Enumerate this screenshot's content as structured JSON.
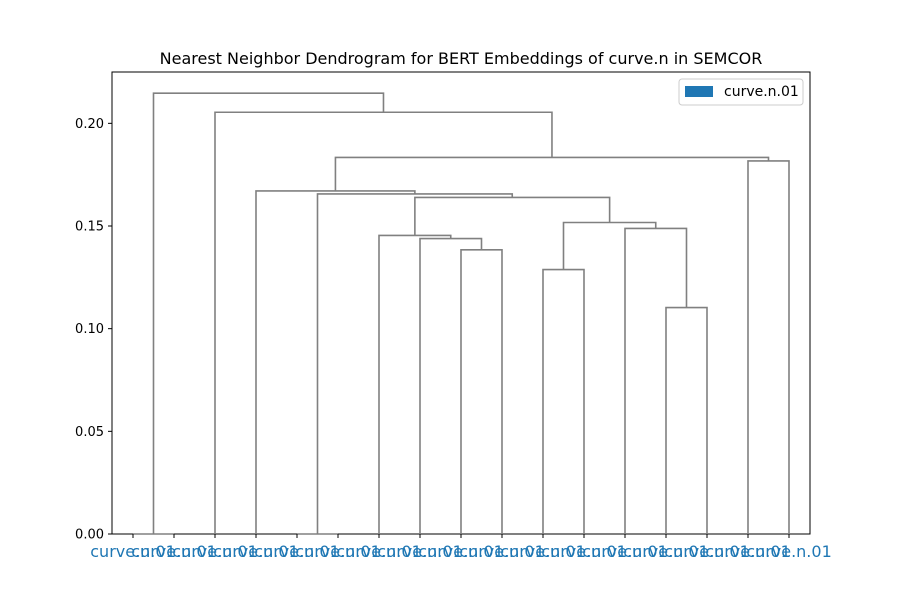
{
  "chart_data": {
    "type": "dendrogram",
    "title": "Nearest Neighbor Dendrogram for BERT Embeddings of curve.n in SEMCOR",
    "xlabel": "",
    "ylabel": "",
    "ylim": [
      0,
      0.225
    ],
    "y_ticks": [
      0.0,
      0.05,
      0.1,
      0.15,
      0.2
    ],
    "y_tick_labels": [
      "0.00",
      "0.05",
      "0.10",
      "0.15",
      "0.20"
    ],
    "leaf_count": 17,
    "leaf_labels": [
      "curve.n.01",
      "curve.n.01",
      "curve.n.01",
      "curve.n.01",
      "curve.n.01",
      "curve.n.01",
      "curve.n.01",
      "curve.n.01",
      "curve.n.01",
      "curve.n.01",
      "curve.n.01",
      "curve.n.01",
      "curve.n.01",
      "curve.n.01",
      "curve.n.01",
      "curve.n.01",
      "curve.n.01"
    ],
    "leaf_label_color": "#1f77b4",
    "link_color": "#808080",
    "links": [
      {
        "x": [
          0,
          0,
          1,
          1
        ],
        "y": [
          0,
          0,
          0,
          0
        ]
      },
      {
        "x": [
          4,
          4,
          5,
          5
        ],
        "y": [
          0,
          0,
          0,
          0
        ]
      },
      {
        "x": [
          8,
          8,
          9,
          9
        ],
        "y": [
          0,
          0.1384,
          0.1384,
          0
        ]
      },
      {
        "x": [
          7,
          7,
          8.5,
          8.5
        ],
        "y": [
          0,
          0.1439,
          0.1439,
          0.1384
        ]
      },
      {
        "x": [
          6,
          6,
          7.75,
          7.75
        ],
        "y": [
          0,
          0.1454,
          0.1454,
          0.1439
        ]
      },
      {
        "x": [
          10,
          10,
          11,
          11
        ],
        "y": [
          0,
          0.1288,
          0.1288,
          0
        ]
      },
      {
        "x": [
          13,
          13,
          14,
          14
        ],
        "y": [
          0,
          0.1103,
          0.1103,
          0
        ]
      },
      {
        "x": [
          12,
          12,
          13.5,
          13.5
        ],
        "y": [
          0,
          0.1488,
          0.1488,
          0.1103
        ]
      },
      {
        "x": [
          10.5,
          10.5,
          12.75,
          12.75
        ],
        "y": [
          0.1288,
          0.1517,
          0.1517,
          0.1488
        ]
      },
      {
        "x": [
          6.875,
          6.875,
          11.625,
          11.625
        ],
        "y": [
          0.1454,
          0.1639,
          0.1639,
          0.1517
        ]
      },
      {
        "x": [
          4.5,
          4.5,
          9.25,
          9.25
        ],
        "y": [
          0,
          0.1656,
          0.1656,
          0.1639
        ]
      },
      {
        "x": [
          3,
          3,
          6.875,
          6.875
        ],
        "y": [
          0,
          0.1671,
          0.1671,
          0.1656
        ]
      },
      {
        "x": [
          15,
          15,
          16,
          16
        ],
        "y": [
          0,
          0.1817,
          0.1817,
          0
        ]
      },
      {
        "x": [
          4.9375,
          4.9375,
          15.5,
          15.5
        ],
        "y": [
          0.1671,
          0.1834,
          0.1834,
          0.1817
        ]
      },
      {
        "x": [
          2,
          2,
          10.21875,
          10.21875
        ],
        "y": [
          0,
          0.2054,
          0.2054,
          0.1834
        ]
      },
      {
        "x": [
          0.5,
          0.5,
          6.109375,
          6.109375
        ],
        "y": [
          0,
          0.2147,
          0.2147,
          0.2054
        ]
      }
    ],
    "legend": {
      "placement": "top-right",
      "entries": [
        {
          "label": "curve.n.01",
          "color": "#1f77b4"
        }
      ]
    },
    "grid": false
  }
}
